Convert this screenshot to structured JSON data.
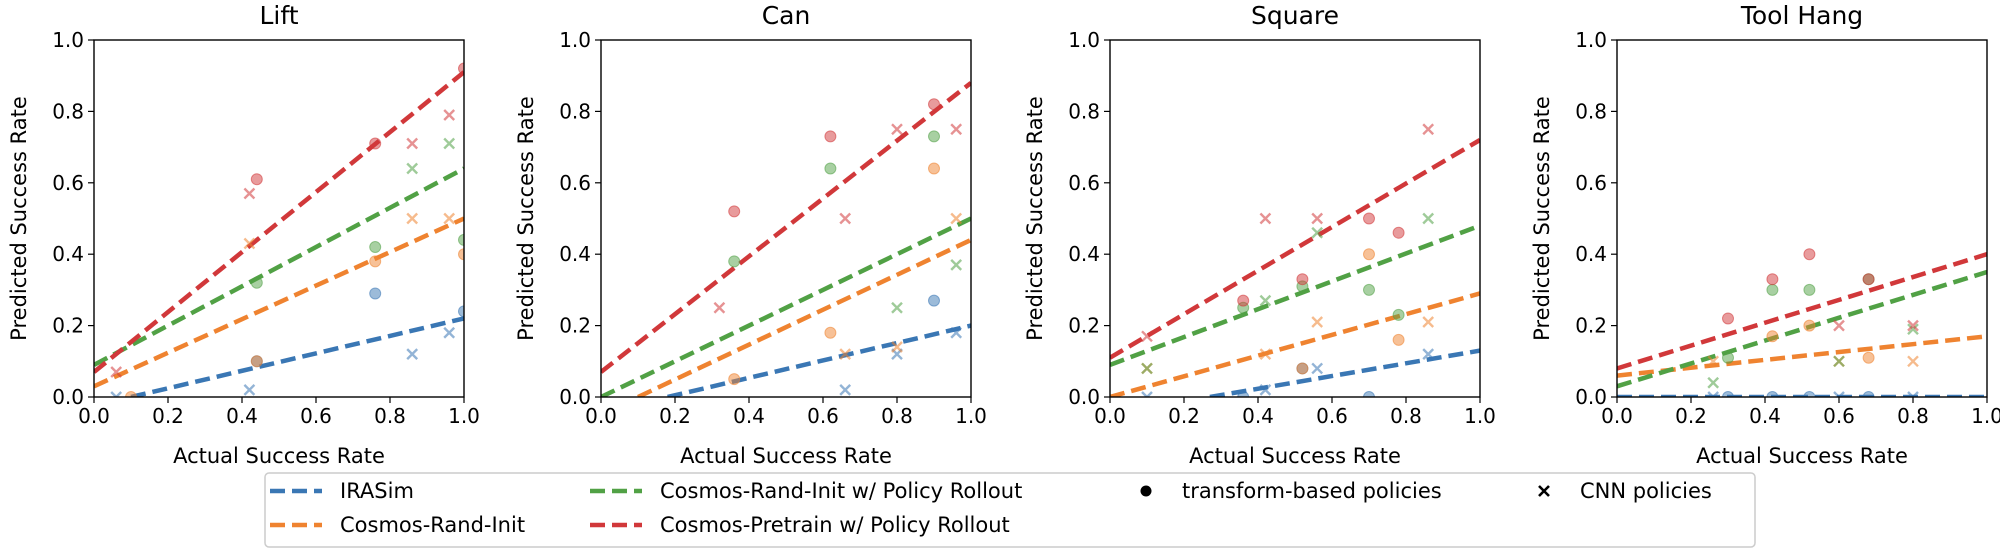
{
  "figure": {
    "legend": {
      "entries": [
        {
          "label": "IRASim",
          "kind": "line",
          "color": "#3a77b4"
        },
        {
          "label": "Cosmos-Rand-Init",
          "kind": "line",
          "color": "#ef8330"
        },
        {
          "label": "Cosmos-Rand-Init w/ Policy Rollout",
          "kind": "line",
          "color": "#51a145"
        },
        {
          "label": "Cosmos-Pretrain w/ Policy Rollout",
          "kind": "line",
          "color": "#d1383a"
        },
        {
          "label": "transform-based policies",
          "kind": "dot",
          "color": "#000000"
        },
        {
          "label": "CNN policies",
          "kind": "cross",
          "color": "#000000"
        }
      ]
    }
  },
  "chart_data": [
    {
      "type": "scatter",
      "title": "Lift",
      "xlabel": "Actual Success Rate",
      "ylabel": "Predicted Success Rate",
      "xlim": [
        0,
        1
      ],
      "ylim": [
        0,
        1
      ],
      "xticks": [
        "0.0",
        "0.2",
        "0.4",
        "0.6",
        "0.8",
        "1.0"
      ],
      "yticks": [
        "0.0",
        "0.2",
        "0.4",
        "0.6",
        "0.8",
        "1.0"
      ],
      "series": [
        {
          "name": "IRASim",
          "color": "#3a77b4",
          "fit": [
            [
              0.1,
              0.0
            ],
            [
              1.0,
              0.22
            ]
          ],
          "dots": [
            [
              0.44,
              0.1
            ],
            [
              0.76,
              0.29
            ],
            [
              1.0,
              0.24
            ]
          ],
          "crosses": [
            [
              0.06,
              0.0
            ],
            [
              0.42,
              0.02
            ],
            [
              0.86,
              0.12
            ],
            [
              0.96,
              0.18
            ]
          ]
        },
        {
          "name": "Cosmos-Rand-Init",
          "color": "#ef8330",
          "fit": [
            [
              0.0,
              0.03
            ],
            [
              1.0,
              0.5
            ]
          ],
          "dots": [
            [
              0.1,
              0.0
            ],
            [
              0.44,
              0.1
            ],
            [
              0.76,
              0.38
            ],
            [
              1.0,
              0.4
            ]
          ],
          "crosses": [
            [
              0.42,
              0.43
            ],
            [
              0.86,
              0.5
            ],
            [
              0.96,
              0.5
            ]
          ]
        },
        {
          "name": "Cosmos-Rand-Init w/ Policy Rollout",
          "color": "#51a145",
          "fit": [
            [
              0.0,
              0.09
            ],
            [
              1.0,
              0.64
            ]
          ],
          "dots": [
            [
              0.44,
              0.32
            ],
            [
              0.76,
              0.42
            ],
            [
              1.0,
              0.44
            ]
          ],
          "crosses": [
            [
              0.86,
              0.64
            ],
            [
              0.96,
              0.71
            ]
          ]
        },
        {
          "name": "Cosmos-Pretrain w/ Policy Rollout",
          "color": "#d1383a",
          "fit": [
            [
              0.0,
              0.07
            ],
            [
              1.0,
              0.91
            ]
          ],
          "dots": [
            [
              0.44,
              0.61
            ],
            [
              0.76,
              0.71
            ],
            [
              1.0,
              0.92
            ]
          ],
          "crosses": [
            [
              0.06,
              0.07
            ],
            [
              0.42,
              0.57
            ],
            [
              0.86,
              0.71
            ],
            [
              0.96,
              0.79
            ]
          ]
        }
      ]
    },
    {
      "type": "scatter",
      "title": "Can",
      "xlabel": "Actual Success Rate",
      "ylabel": "Predicted Success Rate",
      "xlim": [
        0,
        1
      ],
      "ylim": [
        0,
        1
      ],
      "xticks": [
        "0.0",
        "0.2",
        "0.4",
        "0.6",
        "0.8",
        "1.0"
      ],
      "yticks": [
        "0.0",
        "0.2",
        "0.4",
        "0.6",
        "0.8",
        "1.0"
      ],
      "series": [
        {
          "name": "IRASim",
          "color": "#3a77b4",
          "fit": [
            [
              0.18,
              0.0
            ],
            [
              1.0,
              0.2
            ]
          ],
          "dots": [
            [
              0.9,
              0.27
            ]
          ],
          "crosses": [
            [
              0.66,
              0.02
            ],
            [
              0.8,
              0.12
            ],
            [
              0.96,
              0.18
            ]
          ]
        },
        {
          "name": "Cosmos-Rand-Init",
          "color": "#ef8330",
          "fit": [
            [
              0.1,
              0.0
            ],
            [
              1.0,
              0.44
            ]
          ],
          "dots": [
            [
              0.36,
              0.05
            ],
            [
              0.62,
              0.18
            ],
            [
              0.9,
              0.64
            ]
          ],
          "crosses": [
            [
              0.66,
              0.12
            ],
            [
              0.8,
              0.14
            ],
            [
              0.96,
              0.5
            ]
          ]
        },
        {
          "name": "Cosmos-Rand-Init w/ Policy Rollout",
          "color": "#51a145",
          "fit": [
            [
              0.0,
              0.0
            ],
            [
              1.0,
              0.5
            ]
          ],
          "dots": [
            [
              0.36,
              0.38
            ],
            [
              0.62,
              0.64
            ],
            [
              0.9,
              0.73
            ]
          ],
          "crosses": [
            [
              0.8,
              0.25
            ],
            [
              0.96,
              0.37
            ]
          ]
        },
        {
          "name": "Cosmos-Pretrain w/ Policy Rollout",
          "color": "#d1383a",
          "fit": [
            [
              0.0,
              0.07
            ],
            [
              1.0,
              0.88
            ]
          ],
          "dots": [
            [
              0.36,
              0.52
            ],
            [
              0.62,
              0.73
            ],
            [
              0.9,
              0.82
            ]
          ],
          "crosses": [
            [
              0.32,
              0.25
            ],
            [
              0.66,
              0.5
            ],
            [
              0.8,
              0.75
            ],
            [
              0.96,
              0.75
            ]
          ]
        }
      ]
    },
    {
      "type": "scatter",
      "title": "Square",
      "xlabel": "Actual Success Rate",
      "ylabel": "Predicted Success Rate",
      "xlim": [
        0,
        1
      ],
      "ylim": [
        0,
        1
      ],
      "xticks": [
        "0.0",
        "0.2",
        "0.4",
        "0.6",
        "0.8",
        "1.0"
      ],
      "yticks": [
        "0.0",
        "0.2",
        "0.4",
        "0.6",
        "0.8",
        "1.0"
      ],
      "series": [
        {
          "name": "IRASim",
          "color": "#3a77b4",
          "fit": [
            [
              0.27,
              0.0
            ],
            [
              1.0,
              0.13
            ]
          ],
          "dots": [
            [
              0.36,
              0.0
            ],
            [
              0.52,
              0.08
            ],
            [
              0.7,
              0.0
            ]
          ],
          "crosses": [
            [
              0.1,
              0.0
            ],
            [
              0.42,
              0.02
            ],
            [
              0.56,
              0.08
            ],
            [
              0.86,
              0.12
            ]
          ]
        },
        {
          "name": "Cosmos-Rand-Init",
          "color": "#ef8330",
          "fit": [
            [
              0.0,
              0.0
            ],
            [
              1.0,
              0.29
            ]
          ],
          "dots": [
            [
              0.52,
              0.08
            ],
            [
              0.7,
              0.4
            ],
            [
              0.78,
              0.16
            ]
          ],
          "crosses": [
            [
              0.1,
              0.08
            ],
            [
              0.42,
              0.12
            ],
            [
              0.56,
              0.21
            ],
            [
              0.86,
              0.21
            ]
          ]
        },
        {
          "name": "Cosmos-Rand-Init w/ Policy Rollout",
          "color": "#51a145",
          "fit": [
            [
              0.0,
              0.09
            ],
            [
              1.0,
              0.48
            ]
          ],
          "dots": [
            [
              0.36,
              0.25
            ],
            [
              0.52,
              0.31
            ],
            [
              0.7,
              0.3
            ],
            [
              0.78,
              0.23
            ]
          ],
          "crosses": [
            [
              0.1,
              0.08
            ],
            [
              0.42,
              0.27
            ],
            [
              0.56,
              0.46
            ],
            [
              0.86,
              0.5
            ]
          ]
        },
        {
          "name": "Cosmos-Pretrain w/ Policy Rollout",
          "color": "#d1383a",
          "fit": [
            [
              0.0,
              0.11
            ],
            [
              1.0,
              0.72
            ]
          ],
          "dots": [
            [
              0.36,
              0.27
            ],
            [
              0.52,
              0.33
            ],
            [
              0.7,
              0.5
            ],
            [
              0.78,
              0.46
            ]
          ],
          "crosses": [
            [
              0.1,
              0.17
            ],
            [
              0.42,
              0.5
            ],
            [
              0.56,
              0.5
            ],
            [
              0.86,
              0.75
            ]
          ]
        }
      ]
    },
    {
      "type": "scatter",
      "title": "Tool Hang",
      "xlabel": "Actual Success Rate",
      "ylabel": "Predicted Success Rate",
      "xlim": [
        0,
        1
      ],
      "ylim": [
        0,
        1
      ],
      "xticks": [
        "0.0",
        "0.2",
        "0.4",
        "0.6",
        "0.8",
        "1.0"
      ],
      "yticks": [
        "0.0",
        "0.2",
        "0.4",
        "0.6",
        "0.8",
        "1.0"
      ],
      "series": [
        {
          "name": "IRASim",
          "color": "#3a77b4",
          "fit": [
            [
              0.0,
              0.0
            ],
            [
              1.0,
              0.0
            ]
          ],
          "dots": [
            [
              0.3,
              0.0
            ],
            [
              0.42,
              0.0
            ],
            [
              0.52,
              0.0
            ],
            [
              0.68,
              0.0
            ]
          ],
          "crosses": [
            [
              0.26,
              0.0
            ],
            [
              0.6,
              0.0
            ],
            [
              0.8,
              0.0
            ]
          ]
        },
        {
          "name": "Cosmos-Rand-Init",
          "color": "#ef8330",
          "fit": [
            [
              0.0,
              0.06
            ],
            [
              1.0,
              0.17
            ]
          ],
          "dots": [
            [
              0.42,
              0.17
            ],
            [
              0.52,
              0.2
            ],
            [
              0.68,
              0.11
            ]
          ],
          "crosses": [
            [
              0.26,
              0.1
            ],
            [
              0.6,
              0.1
            ],
            [
              0.8,
              0.1
            ]
          ]
        },
        {
          "name": "Cosmos-Rand-Init w/ Policy Rollout",
          "color": "#51a145",
          "fit": [
            [
              0.0,
              0.03
            ],
            [
              1.0,
              0.35
            ]
          ],
          "dots": [
            [
              0.3,
              0.11
            ],
            [
              0.42,
              0.3
            ],
            [
              0.52,
              0.3
            ],
            [
              0.68,
              0.33
            ]
          ],
          "crosses": [
            [
              0.26,
              0.04
            ],
            [
              0.6,
              0.1
            ],
            [
              0.8,
              0.19
            ]
          ]
        },
        {
          "name": "Cosmos-Pretrain w/ Policy Rollout",
          "color": "#d1383a",
          "fit": [
            [
              0.0,
              0.08
            ],
            [
              1.0,
              0.4
            ]
          ],
          "dots": [
            [
              0.3,
              0.22
            ],
            [
              0.42,
              0.33
            ],
            [
              0.52,
              0.4
            ],
            [
              0.68,
              0.33
            ]
          ],
          "crosses": [
            [
              0.6,
              0.2
            ],
            [
              0.8,
              0.2
            ]
          ]
        }
      ]
    }
  ]
}
